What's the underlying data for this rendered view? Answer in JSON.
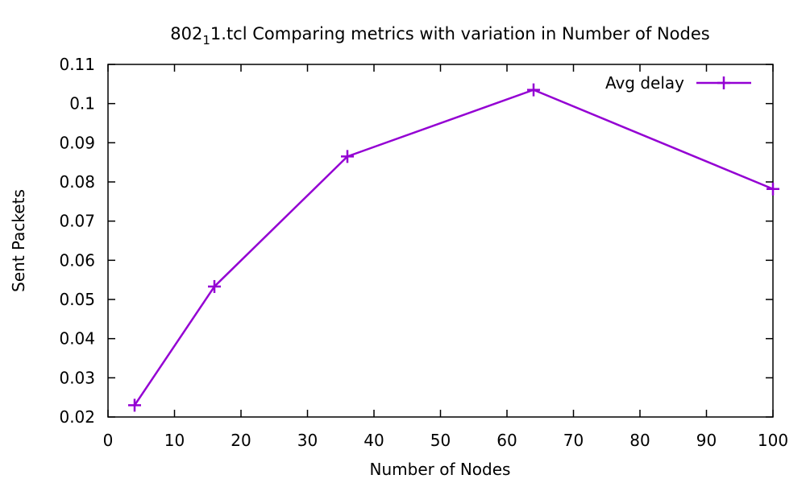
{
  "chart_data": {
    "type": "line",
    "title": {
      "prefix": "802",
      "subscript": "1",
      "suffix": "1.tcl Comparing metrics with variation in Number of Nodes"
    },
    "xlabel": "Number of Nodes",
    "ylabel": "Sent Packets",
    "xlim": [
      0,
      100
    ],
    "ylim": [
      0.02,
      0.11
    ],
    "xticks": [
      0,
      10,
      20,
      30,
      40,
      50,
      60,
      70,
      80,
      90,
      100
    ],
    "yticks": [
      0.02,
      0.03,
      0.04,
      0.05,
      0.06,
      0.07,
      0.08,
      0.09,
      0.1,
      0.11
    ],
    "xtick_labels": [
      "0",
      "10",
      "20",
      "30",
      "40",
      "50",
      "60",
      "70",
      "80",
      "90",
      "100"
    ],
    "ytick_labels": [
      "0.02",
      "0.03",
      "0.04",
      "0.05",
      "0.06",
      "0.07",
      "0.08",
      "0.09",
      "0.1",
      "0.11"
    ],
    "grid": false,
    "legend_position": "top-right",
    "series": [
      {
        "name": "Avg delay",
        "color": "#9400d3",
        "marker": "plus",
        "x": [
          4,
          16,
          36,
          64,
          100
        ],
        "y": [
          0.023,
          0.0533,
          0.0865,
          0.1035,
          0.0782
        ]
      }
    ]
  }
}
